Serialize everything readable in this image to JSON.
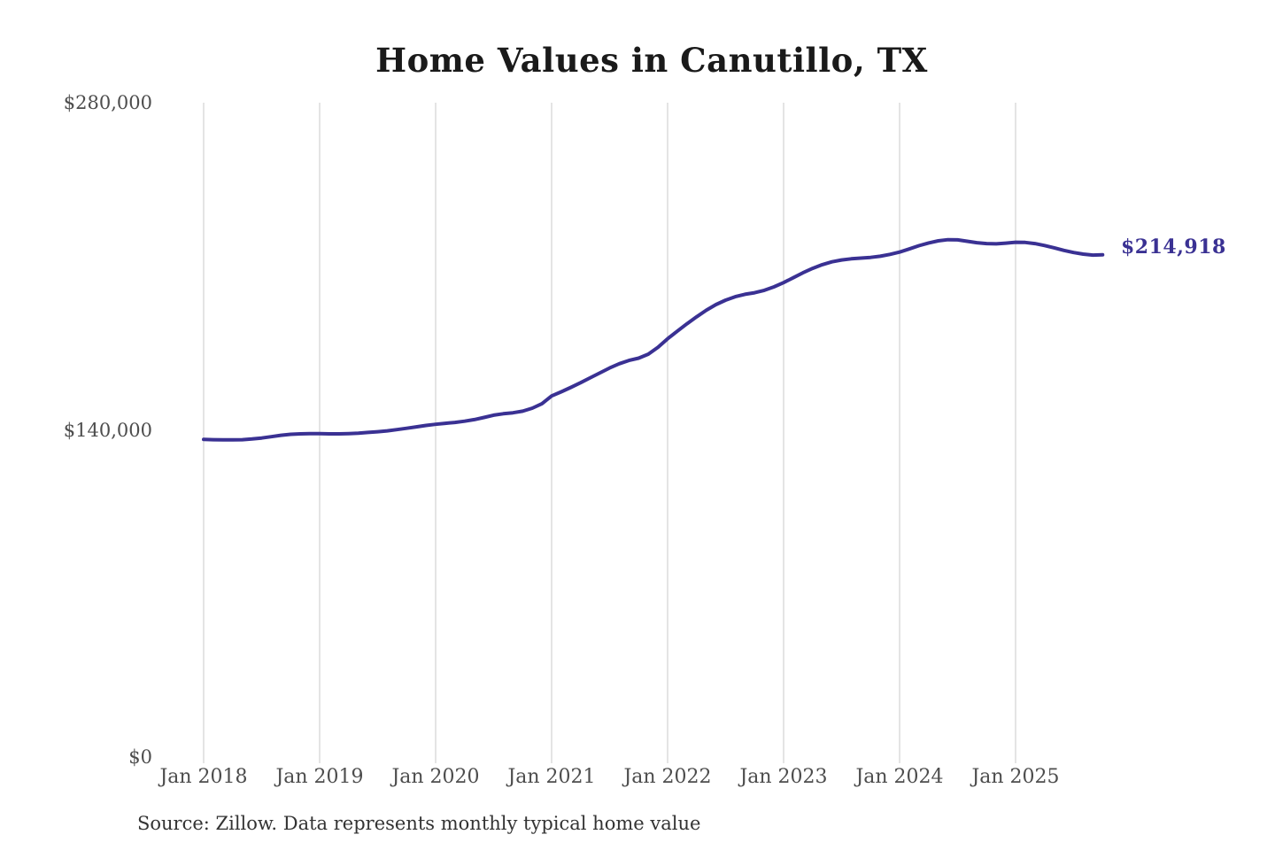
{
  "title": "Home Values in Canutillo, TX",
  "source_note": "Source: Zillow. Data represents monthly typical home value",
  "colors": {
    "background": "#ffffff",
    "line": "#3a3193",
    "value_label": "#3a3193",
    "grid": "#c9c9c9",
    "title_text": "#1a1a1a",
    "axis_text": "#4d4d4d",
    "source_text": "#333333"
  },
  "chart_data": {
    "type": "line",
    "title": "Home Values in Canutillo, TX",
    "xlabel": "",
    "ylabel": "",
    "ylim": [
      0,
      280000
    ],
    "grid": "vertical-only",
    "legend": "none",
    "y_ticks": [
      "$280,000",
      "$140,000",
      "$0"
    ],
    "y_tick_values": [
      280000,
      140000,
      0
    ],
    "x_tick_labels": [
      "Jan 2018",
      "Jan 2019",
      "Jan 2020",
      "Jan 2021",
      "Jan 2022",
      "Jan 2023",
      "Jan 2024",
      "Jan 2025"
    ],
    "series": [
      {
        "name": "Monthly typical home value",
        "frequency": "monthly",
        "x_start": "Jan 2018",
        "x_end": "Oct 2025",
        "final_value": 214918,
        "final_value_label": "$214,918",
        "values": [
          135900,
          135800,
          135700,
          135700,
          135800,
          136100,
          136500,
          137100,
          137700,
          138100,
          138300,
          138400,
          138400,
          138300,
          138300,
          138400,
          138600,
          138900,
          139200,
          139600,
          140100,
          140700,
          141300,
          141900,
          142400,
          142800,
          143200,
          143700,
          144400,
          145300,
          146300,
          146900,
          147300,
          148000,
          149300,
          151200,
          154500,
          156300,
          158200,
          160200,
          162300,
          164400,
          166500,
          168300,
          169700,
          170700,
          172400,
          175300,
          179000,
          182200,
          185400,
          188400,
          191200,
          193600,
          195500,
          197000,
          198000,
          198700,
          199700,
          201200,
          203000,
          205100,
          207200,
          209100,
          210700,
          211900,
          212700,
          213200,
          213500,
          213800,
          214300,
          215100,
          216100,
          217400,
          218800,
          220000,
          220900,
          221400,
          221300,
          220700,
          220100,
          219700,
          219600,
          219900,
          220300,
          220200,
          219700,
          218900,
          217900,
          216800,
          215900,
          215200,
          214800,
          214918
        ]
      }
    ]
  }
}
